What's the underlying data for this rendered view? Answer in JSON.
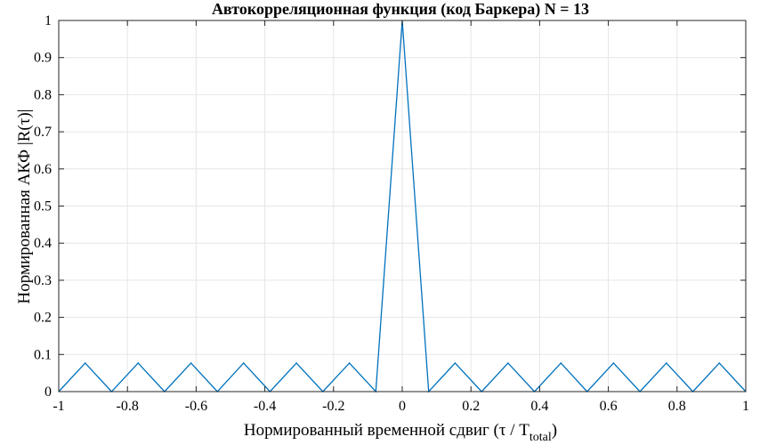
{
  "chart_data": {
    "type": "line",
    "title": "Автокорреляционная функция (код Баркера)  N = 13",
    "xlabel": "Нормированный временной сдвиг (τ / T",
    "xlabel_sub": "total",
    "xlabel_close": ")",
    "ylabel": "Нормированная АКФ |R(τ)|",
    "xlim": [
      -1,
      1
    ],
    "ylim": [
      0,
      1
    ],
    "xticks": [
      -1,
      -0.8,
      -0.6,
      -0.4,
      -0.2,
      0,
      0.2,
      0.4,
      0.6,
      0.8,
      1
    ],
    "xtick_labels": [
      "-1",
      "-0.8",
      "-0.6",
      "-0.4",
      "-0.2",
      "0",
      "0.2",
      "0.4",
      "0.6",
      "0.8",
      "1"
    ],
    "yticks": [
      0,
      0.1,
      0.2,
      0.3,
      0.4,
      0.5,
      0.6,
      0.7,
      0.8,
      0.9,
      1
    ],
    "ytick_labels": [
      "0",
      "0.1",
      "0.2",
      "0.3",
      "0.4",
      "0.5",
      "0.6",
      "0.7",
      "0.8",
      "0.9",
      "1"
    ],
    "grid": true,
    "line_color": "#0072BD",
    "series": [
      {
        "x": [
          -1,
          -0.923,
          -0.846,
          -0.769,
          -0.692,
          -0.615,
          -0.538,
          -0.462,
          -0.385,
          -0.308,
          -0.231,
          -0.154,
          -0.077,
          0,
          0.077,
          0.154,
          0.231,
          0.308,
          0.385,
          0.462,
          0.538,
          0.615,
          0.692,
          0.769,
          0.846,
          0.923,
          1
        ],
        "y": [
          0,
          0.077,
          0,
          0.077,
          0,
          0.077,
          0,
          0.077,
          0,
          0.077,
          0,
          0.077,
          0,
          1,
          0,
          0.077,
          0,
          0.077,
          0,
          0.077,
          0,
          0.077,
          0,
          0.077,
          0,
          0.077,
          0
        ]
      }
    ]
  }
}
